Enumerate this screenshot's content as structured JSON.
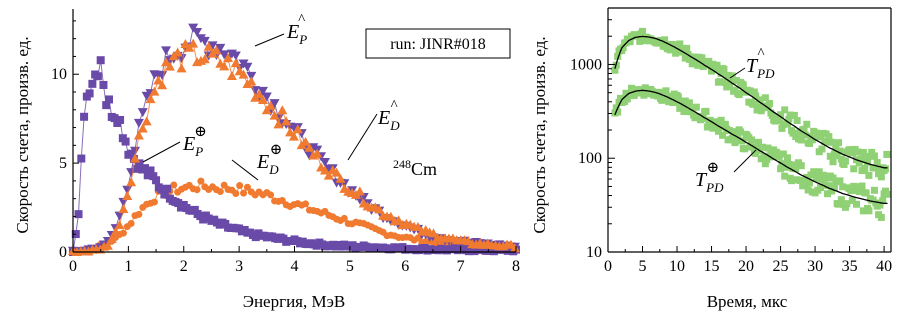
{
  "chart_data": [
    {
      "type": "line",
      "xlabel": "Энергия, МэВ",
      "ylabel": "Скорость счета, произв. ед.",
      "xlim": [
        0,
        8
      ],
      "ylim": [
        0,
        13.5
      ],
      "xticks": [
        "0",
        "1",
        "2",
        "3",
        "4",
        "5",
        "6",
        "7",
        "8"
      ],
      "yticks": [
        "0",
        "5",
        "10"
      ],
      "grid": false,
      "series": [
        {
          "name": "E_P^",
          "color": "#6a4aa8",
          "marker": "triangle-down",
          "x": [
            0.0,
            0.2,
            0.4,
            0.6,
            0.8,
            1.0,
            1.2,
            1.4,
            1.6,
            1.8,
            2.0,
            2.2,
            2.4,
            2.6,
            2.8,
            3.0,
            3.2,
            3.4,
            3.6,
            3.8,
            4.0,
            4.2,
            4.4,
            4.6,
            4.8,
            5.0,
            5.2,
            5.4,
            5.6,
            5.8,
            6.0,
            6.2,
            6.4,
            6.6,
            6.8,
            7.0,
            7.2,
            7.4,
            7.6,
            7.8,
            8.0
          ],
          "values": [
            0.0,
            0.1,
            0.2,
            0.4,
            1.5,
            4.0,
            7.0,
            9.0,
            10.5,
            11.2,
            11.7,
            11.9,
            11.8,
            11.6,
            11.3,
            10.8,
            10.0,
            9.2,
            8.4,
            7.6,
            6.8,
            6.1,
            5.4,
            4.7,
            4.1,
            3.5,
            3.0,
            2.5,
            2.1,
            1.8,
            1.5,
            1.2,
            1.0,
            0.85,
            0.7,
            0.6,
            0.5,
            0.45,
            0.4,
            0.35,
            0.3
          ]
        },
        {
          "name": "E_D^",
          "color": "#f07a30",
          "marker": "triangle-up",
          "x": [
            0.0,
            0.2,
            0.4,
            0.6,
            0.8,
            1.0,
            1.2,
            1.4,
            1.6,
            1.8,
            2.0,
            2.2,
            2.4,
            2.6,
            2.8,
            3.0,
            3.2,
            3.4,
            3.6,
            3.8,
            4.0,
            4.2,
            4.4,
            4.6,
            4.8,
            5.0,
            5.2,
            5.4,
            5.6,
            5.8,
            6.0,
            6.2,
            6.4,
            6.6,
            6.8,
            7.0,
            7.2,
            7.4,
            7.6,
            7.8,
            8.0
          ],
          "values": [
            0.0,
            0.05,
            0.1,
            0.3,
            1.2,
            3.5,
            6.5,
            8.6,
            10.0,
            10.7,
            11.0,
            11.1,
            11.0,
            10.8,
            10.5,
            10.1,
            9.5,
            8.8,
            8.1,
            7.4,
            6.7,
            6.0,
            5.3,
            4.7,
            4.1,
            3.6,
            3.1,
            2.6,
            2.2,
            1.9,
            1.6,
            1.3,
            1.1,
            0.9,
            0.75,
            0.6,
            0.5,
            0.45,
            0.4,
            0.35,
            0.3
          ]
        },
        {
          "name": "E_P⊕",
          "color": "#6a4aa8",
          "marker": "square",
          "x": [
            0.0,
            0.1,
            0.2,
            0.3,
            0.4,
            0.5,
            0.6,
            0.7,
            0.8,
            0.9,
            1.0,
            1.2,
            1.4,
            1.6,
            1.8,
            2.0,
            2.2,
            2.4,
            2.6,
            2.8,
            3.0,
            3.2,
            3.4,
            3.6,
            3.8,
            4.0,
            4.4,
            4.8,
            5.2,
            5.6,
            6.0,
            6.5,
            7.0,
            7.5,
            8.0
          ],
          "values": [
            0.0,
            2.0,
            8.0,
            9.5,
            10.0,
            11.0,
            8.5,
            8.0,
            7.8,
            6.8,
            5.8,
            4.8,
            4.3,
            3.6,
            3.1,
            2.6,
            2.2,
            1.9,
            1.6,
            1.4,
            1.2,
            1.0,
            0.9,
            0.8,
            0.7,
            0.6,
            0.45,
            0.35,
            0.3,
            0.25,
            0.2,
            0.15,
            0.12,
            0.1,
            0.1
          ]
        },
        {
          "name": "E_D⊕",
          "color": "#f07a30",
          "marker": "circle",
          "x": [
            0.0,
            0.4,
            0.8,
            1.0,
            1.2,
            1.4,
            1.6,
            1.8,
            2.0,
            2.2,
            2.4,
            2.6,
            2.8,
            3.0,
            3.2,
            3.4,
            3.6,
            3.8,
            4.0,
            4.2,
            4.4,
            4.6,
            4.8,
            5.0,
            5.2,
            5.4,
            5.6,
            5.8,
            6.0,
            6.2,
            6.4,
            6.6,
            6.8,
            7.0,
            7.2,
            7.4,
            7.6,
            7.8,
            8.0
          ],
          "values": [
            0.0,
            0.2,
            0.8,
            1.5,
            2.3,
            2.9,
            3.3,
            3.5,
            3.6,
            3.7,
            3.7,
            3.6,
            3.6,
            3.5,
            3.4,
            3.3,
            3.1,
            2.9,
            2.7,
            2.5,
            2.3,
            2.1,
            1.9,
            1.7,
            1.5,
            1.3,
            1.1,
            0.95,
            0.8,
            0.7,
            0.6,
            0.5,
            0.4,
            0.35,
            0.3,
            0.25,
            0.2,
            0.15,
            0.1
          ]
        }
      ],
      "annotations": [
        "248Cm"
      ],
      "legend_box": "run: JINR#018",
      "series_labels": {
        "ep_top": {
          "base": "E",
          "sub": "P",
          "sup": "^"
        },
        "ed_top": {
          "base": "E",
          "sub": "D",
          "sup": "^"
        },
        "ep_bot": {
          "base": "E",
          "sub": "P",
          "sup": "⊕"
        },
        "ed_bot": {
          "base": "E",
          "sub": "D",
          "sup": "⊕"
        }
      },
      "isotope": {
        "mass": "248",
        "symbol": "Cm"
      }
    },
    {
      "type": "scatter",
      "xlabel": "Время, мкс",
      "ylabel": "Скорость счета, произв. ед.",
      "xlim": [
        0,
        41
      ],
      "ylim": [
        10,
        4000
      ],
      "yscale": "log",
      "xticks": [
        "0",
        "5",
        "10",
        "15",
        "20",
        "25",
        "30",
        "35",
        "40"
      ],
      "yticks": [
        "10",
        "100",
        "1000"
      ],
      "grid": false,
      "series": [
        {
          "name": "T_PD^",
          "color": "#8fd174",
          "fit_color": "#000000",
          "x": [
            1,
            2,
            3,
            4,
            5,
            6,
            7,
            8,
            9,
            10,
            12,
            14,
            16,
            18,
            20,
            22,
            24,
            26,
            28,
            30,
            32,
            34,
            36,
            38,
            40
          ],
          "values": [
            900,
            1500,
            1800,
            1950,
            1990,
            1960,
            1880,
            1760,
            1620,
            1480,
            1210,
            980,
            790,
            630,
            500,
            395,
            310,
            245,
            195,
            158,
            130,
            110,
            96,
            86,
            79
          ]
        },
        {
          "name": "T_PD⊕",
          "color": "#8fd174",
          "fit_color": "#000000",
          "x": [
            1,
            2,
            3,
            4,
            5,
            6,
            7,
            8,
            9,
            10,
            12,
            14,
            16,
            18,
            20,
            22,
            24,
            26,
            28,
            30,
            32,
            34,
            36,
            38,
            40
          ],
          "values": [
            290,
            420,
            490,
            520,
            530,
            520,
            500,
            470,
            435,
            400,
            330,
            270,
            220,
            180,
            148,
            120,
            98,
            80,
            66,
            56,
            48,
            42,
            38,
            35,
            33
          ]
        }
      ],
      "series_labels": {
        "tpd_top": {
          "base": "T",
          "sub": "PD",
          "sup": "^"
        },
        "tpd_bot": {
          "base": "T",
          "sub": "PD",
          "sup": "⊕"
        }
      }
    }
  ]
}
